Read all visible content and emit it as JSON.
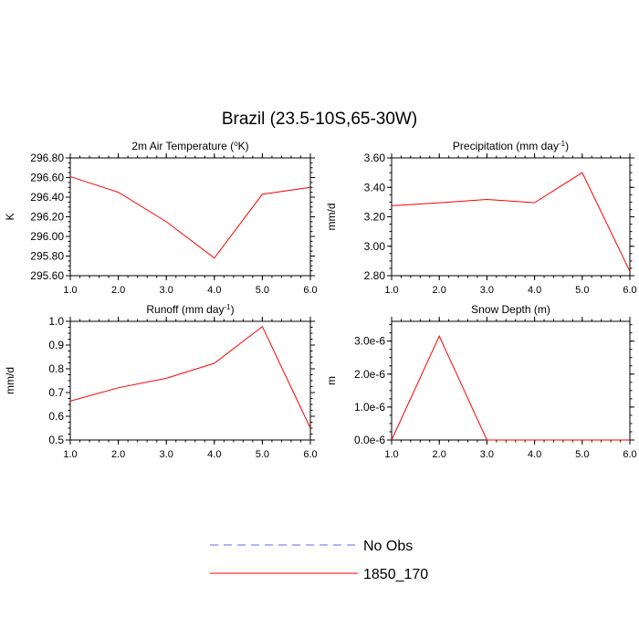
{
  "page_title": "Brazil (23.5-10S,65-30W)",
  "chart_data": [
    {
      "type": "line",
      "title": "2m Air Temperature (°K)",
      "title_main": "2m Air Temperature (",
      "title_sup": "o",
      "title_end": "K)",
      "xlabel": "",
      "ylabel": "K",
      "xlim": [
        1.0,
        6.0
      ],
      "ylim": [
        295.6,
        296.8
      ],
      "xticks": [
        "1.0",
        "2.0",
        "3.0",
        "4.0",
        "5.0",
        "6.0"
      ],
      "yticks": [
        "295.60",
        "295.80",
        "296.00",
        "296.20",
        "296.40",
        "296.60",
        "296.80"
      ],
      "x": [
        1,
        2,
        3,
        4,
        5,
        6
      ],
      "series": [
        {
          "color": "#ff0000",
          "values": [
            296.61,
            296.45,
            296.15,
            295.78,
            296.43,
            296.5
          ]
        }
      ]
    },
    {
      "type": "line",
      "title": "Precipitation (mm day-1)",
      "title_main": "Precipitation (mm day",
      "title_sup": "-1",
      "title_end": ")",
      "xlabel": "",
      "ylabel": "mm/d",
      "xlim": [
        1.0,
        6.0
      ],
      "ylim": [
        2.8,
        3.6
      ],
      "xticks": [
        "1.0",
        "2.0",
        "3.0",
        "4.0",
        "5.0",
        "6.0"
      ],
      "yticks": [
        "2.80",
        "3.00",
        "3.20",
        "3.40",
        "3.60"
      ],
      "x": [
        1,
        2,
        3,
        4,
        5,
        6
      ],
      "series": [
        {
          "color": "#ff0000",
          "values": [
            3.275,
            3.295,
            3.318,
            3.296,
            3.5,
            2.83
          ]
        }
      ]
    },
    {
      "type": "line",
      "title": "Runoff (mm day-1)",
      "title_main": "Runoff (mm day",
      "title_sup": "-1",
      "title_end": ")",
      "xlabel": "",
      "ylabel": "mm/d",
      "xlim": [
        1.0,
        6.0
      ],
      "ylim": [
        0.5,
        1.0
      ],
      "xticks": [
        "1.0",
        "2.0",
        "3.0",
        "4.0",
        "5.0",
        "6.0"
      ],
      "yticks": [
        "0.5",
        "0.6",
        "0.7",
        "0.8",
        "0.9",
        "1.0"
      ],
      "x": [
        1,
        2,
        3,
        4,
        5,
        6
      ],
      "series": [
        {
          "color": "#ff0000",
          "values": [
            0.664,
            0.72,
            0.76,
            0.823,
            0.978,
            0.55
          ]
        }
      ]
    },
    {
      "type": "line",
      "title": "Snow Depth (m)",
      "title_main": "Snow Depth (m)",
      "title_sup": "",
      "title_end": "",
      "xlabel": "",
      "ylabel": "m",
      "xlim": [
        1.0,
        6.0
      ],
      "ylim": [
        0,
        3.6e-06
      ],
      "xticks": [
        "1.0",
        "2.0",
        "3.0",
        "4.0",
        "5.0",
        "6.0"
      ],
      "yticks": [
        "0.0e-6",
        "1.0e-6",
        "2.0e-6",
        "3.0e-6"
      ],
      "ytick_values": [
        0,
        1e-06,
        2e-06,
        3e-06
      ],
      "x": [
        1,
        2,
        3,
        4,
        5,
        6
      ],
      "series": [
        {
          "color": "#ff0000",
          "values": [
            0,
            3.15e-06,
            0,
            0,
            0,
            0
          ]
        }
      ]
    }
  ],
  "legend": [
    {
      "name": "No Obs",
      "color": "#6666ff",
      "style": "dashed"
    },
    {
      "name": "1850_170",
      "color": "#ff0000",
      "style": "solid"
    }
  ]
}
